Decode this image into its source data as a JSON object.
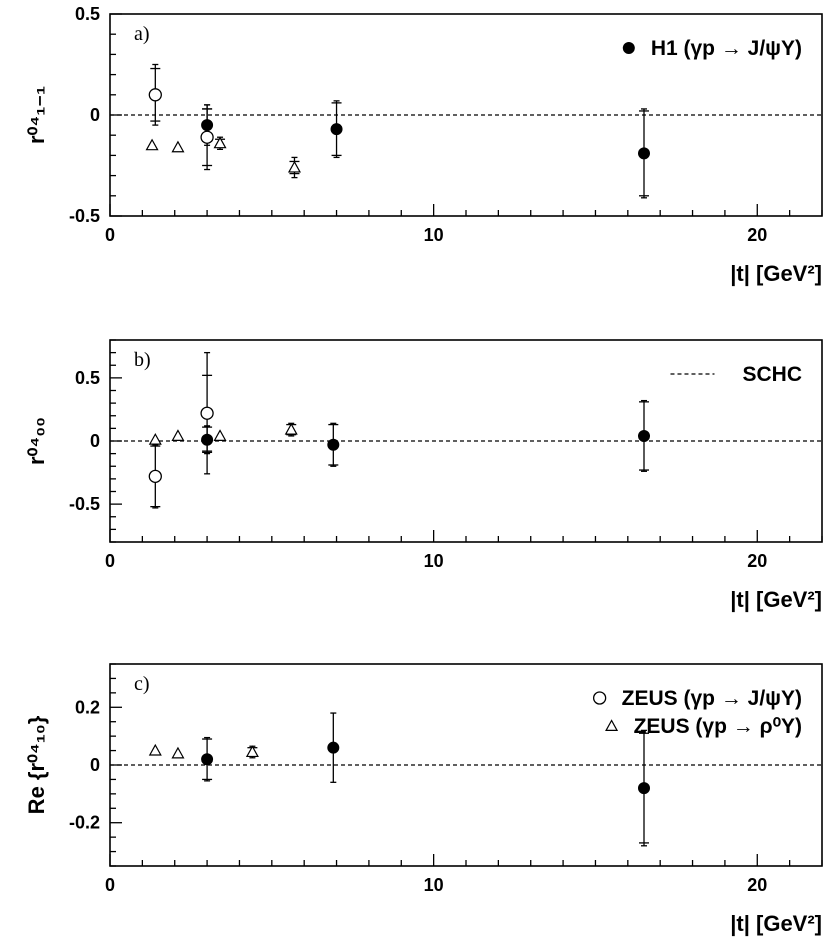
{
  "chart_data": [
    {
      "type": "scatter",
      "panel_label": "a)",
      "xlabel": "|t|  [GeV²]",
      "ylabel": "r⁰⁴₁₋₁",
      "xlim": [
        0,
        22
      ],
      "ylim": [
        -0.5,
        0.5
      ],
      "x_ticks": [
        "0",
        "10",
        "20"
      ],
      "y_ticks": [
        "-0.5",
        "0",
        "0.5"
      ],
      "reference_line": 0,
      "legend": [
        {
          "marker": "filled-circle",
          "label": "H1 (γp → J/ψY)"
        }
      ],
      "series": [
        {
          "name": "H1 (γp → J/ψY)",
          "marker": "filled-circle",
          "points": [
            {
              "x": 3.0,
              "y": -0.05,
              "stat": 0.08,
              "tot": 0.1
            },
            {
              "x": 7.0,
              "y": -0.07,
              "stat": 0.13,
              "tot": 0.14
            },
            {
              "x": 16.5,
              "y": -0.19,
              "stat": 0.21,
              "tot": 0.22
            }
          ]
        },
        {
          "name": "ZEUS (γp → J/ψY)",
          "marker": "open-circle",
          "points": [
            {
              "x": 1.4,
              "y": 0.1,
              "stat": 0.13,
              "tot": 0.15
            },
            {
              "x": 3.0,
              "y": -0.11,
              "stat": 0.14,
              "tot": 0.16
            }
          ]
        },
        {
          "name": "ZEUS (γp → ρ⁰Y)",
          "marker": "open-triangle",
          "points": [
            {
              "x": 1.3,
              "y": -0.15,
              "stat": 0,
              "tot": 0
            },
            {
              "x": 2.1,
              "y": -0.16,
              "stat": 0,
              "tot": 0
            },
            {
              "x": 3.4,
              "y": -0.14,
              "stat": 0.02,
              "tot": 0.03
            },
            {
              "x": 5.7,
              "y": -0.26,
              "stat": 0.03,
              "tot": 0.05
            }
          ]
        }
      ]
    },
    {
      "type": "scatter",
      "panel_label": "b)",
      "xlabel": "|t|  [GeV²]",
      "ylabel": "r⁰⁴₀₀",
      "xlim": [
        0,
        22
      ],
      "ylim": [
        -0.8,
        0.8
      ],
      "x_ticks": [
        "0",
        "10",
        "20"
      ],
      "y_ticks": [
        "-0.5",
        "0",
        "0.5"
      ],
      "reference_line": 0,
      "legend": [
        {
          "marker": "dashed-line",
          "label": "SCHC"
        }
      ],
      "series": [
        {
          "name": "H1 (γp → J/ψY)",
          "marker": "filled-circle",
          "points": [
            {
              "x": 3.0,
              "y": 0.01,
              "stat": 0.1,
              "tot": 0.11
            },
            {
              "x": 6.9,
              "y": -0.03,
              "stat": 0.16,
              "tot": 0.17
            },
            {
              "x": 16.5,
              "y": 0.04,
              "stat": 0.27,
              "tot": 0.28
            }
          ]
        },
        {
          "name": "ZEUS (γp → J/ψY)",
          "marker": "open-circle",
          "points": [
            {
              "x": 1.4,
              "y": -0.28,
              "stat": 0.24,
              "tot": 0.25
            },
            {
              "x": 3.0,
              "y": 0.22,
              "stat": 0.3,
              "tot": 0.48
            }
          ]
        },
        {
          "name": "ZEUS (γp → ρ⁰Y)",
          "marker": "open-triangle",
          "points": [
            {
              "x": 1.4,
              "y": 0.01,
              "stat": 0,
              "tot": 0
            },
            {
              "x": 2.1,
              "y": 0.04,
              "stat": 0,
              "tot": 0
            },
            {
              "x": 3.4,
              "y": 0.04,
              "stat": 0,
              "tot": 0
            },
            {
              "x": 5.6,
              "y": 0.09,
              "stat": 0.04,
              "tot": 0.05
            }
          ]
        }
      ]
    },
    {
      "type": "scatter",
      "panel_label": "c)",
      "xlabel": "|t|  [GeV²]",
      "ylabel": "Re {r⁰⁴₁₀}",
      "xlim": [
        0,
        22
      ],
      "ylim": [
        -0.35,
        0.35
      ],
      "x_ticks": [
        "0",
        "10",
        "20"
      ],
      "y_ticks": [
        "-0.2",
        "0",
        "0.2"
      ],
      "reference_line": 0,
      "legend": [
        {
          "marker": "open-circle",
          "label": "ZEUS (γp → J/ψY)"
        },
        {
          "marker": "open-triangle",
          "label": "ZEUS (γp → ρ⁰Y)"
        }
      ],
      "series": [
        {
          "name": "H1 (γp → J/ψY)",
          "marker": "filled-circle",
          "points": [
            {
              "x": 3.0,
              "y": 0.02,
              "stat": 0.07,
              "tot": 0.075
            },
            {
              "x": 6.9,
              "y": 0.06,
              "stat": 0.12,
              "tot": 0.12
            },
            {
              "x": 16.5,
              "y": -0.08,
              "stat": 0.19,
              "tot": 0.2
            }
          ]
        },
        {
          "name": "ZEUS (γp → ρ⁰Y)",
          "marker": "open-triangle",
          "points": [
            {
              "x": 1.4,
              "y": 0.05,
              "stat": 0,
              "tot": 0
            },
            {
              "x": 2.1,
              "y": 0.04,
              "stat": 0,
              "tot": 0
            },
            {
              "x": 4.4,
              "y": 0.045,
              "stat": 0.015,
              "tot": 0.02
            }
          ]
        }
      ]
    }
  ]
}
